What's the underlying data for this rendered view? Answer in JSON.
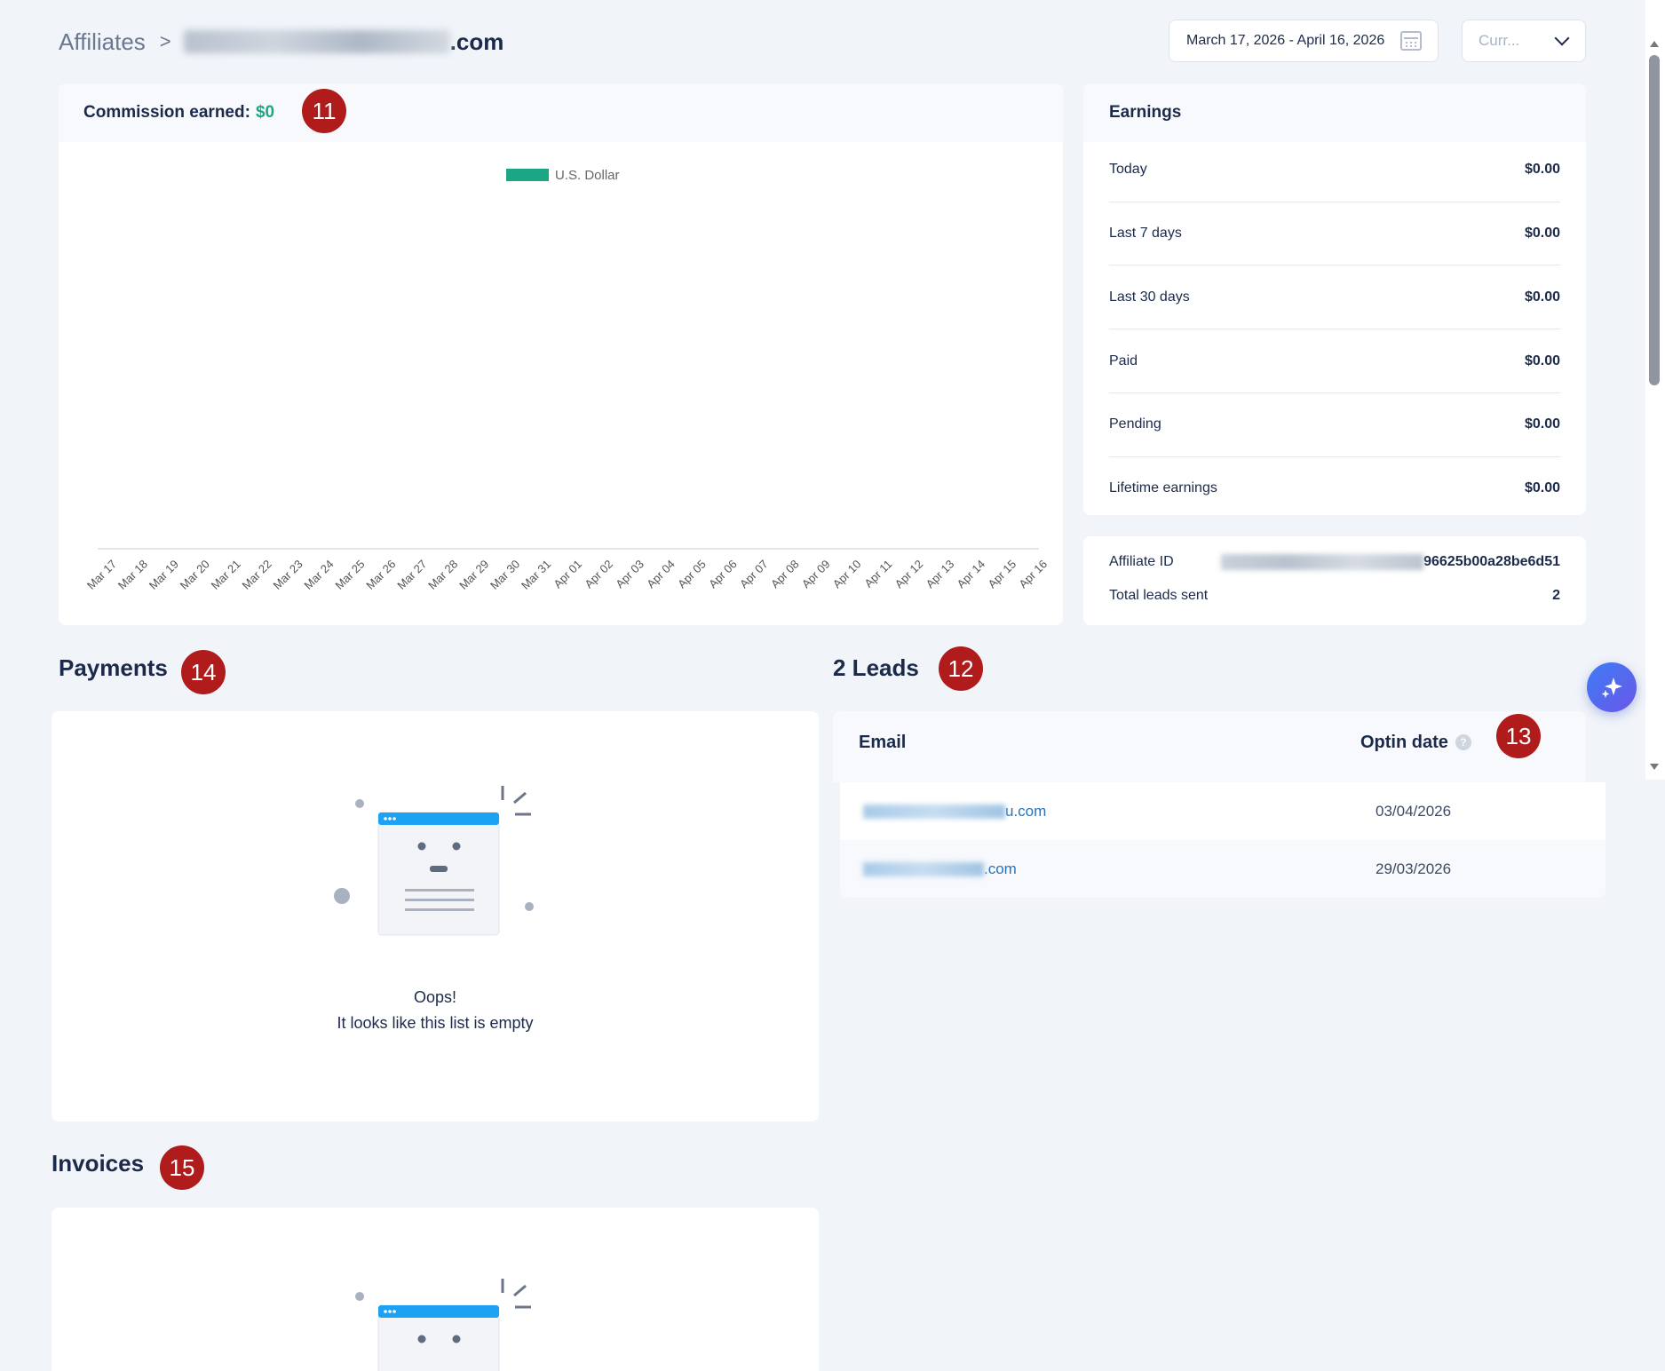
{
  "header": {
    "breadcrumb_root": "Affiliates",
    "breadcrumb_separator": ">",
    "breadcrumb_tail": ".com",
    "date_range": "March 17, 2026 - April 16, 2026",
    "currency_placeholder": "Curr..."
  },
  "commission": {
    "label": "Commission earned:",
    "amount": "$0"
  },
  "chart_data": {
    "type": "bar",
    "categories": [
      "Mar 17",
      "Mar 18",
      "Mar 19",
      "Mar 20",
      "Mar 21",
      "Mar 22",
      "Mar 23",
      "Mar 24",
      "Mar 25",
      "Mar 26",
      "Mar 27",
      "Mar 28",
      "Mar 29",
      "Mar 30",
      "Mar 31",
      "Apr 01",
      "Apr 02",
      "Apr 03",
      "Apr 04",
      "Apr 05",
      "Apr 06",
      "Apr 07",
      "Apr 08",
      "Apr 09",
      "Apr 10",
      "Apr 11",
      "Apr 12",
      "Apr 13",
      "Apr 14",
      "Apr 15",
      "Apr 16"
    ],
    "series": [
      {
        "name": "U.S. Dollar",
        "color": "#1ba784",
        "values": [
          0,
          0,
          0,
          0,
          0,
          0,
          0,
          0,
          0,
          0,
          0,
          0,
          0,
          0,
          0,
          0,
          0,
          0,
          0,
          0,
          0,
          0,
          0,
          0,
          0,
          0,
          0,
          0,
          0,
          0,
          0
        ]
      }
    ],
    "legend": "top-center",
    "grid": false
  },
  "earnings": {
    "title": "Earnings",
    "rows": [
      {
        "label": "Today",
        "value": "$0.00"
      },
      {
        "label": "Last 7 days",
        "value": "$0.00"
      },
      {
        "label": "Last 30 days",
        "value": "$0.00"
      },
      {
        "label": "Paid",
        "value": "$0.00"
      },
      {
        "label": "Pending",
        "value": "$0.00"
      },
      {
        "label": "Lifetime earnings",
        "value": "$0.00"
      }
    ]
  },
  "affiliate": {
    "id_label": "Affiliate ID",
    "id_value_visible": "96625b00a28be6d51",
    "leads_label": "Total leads sent",
    "leads_value": "2"
  },
  "payments": {
    "title": "Payments",
    "empty_title": "Oops!",
    "empty_message": "It looks like this list is empty"
  },
  "leads": {
    "title": "2 Leads",
    "col_email": "Email",
    "col_optin": "Optin date",
    "info_glyph": "?",
    "rows": [
      {
        "email_suffix": "u.com",
        "date": "03/04/2026"
      },
      {
        "email_suffix": ".com",
        "date": "29/03/2026"
      }
    ]
  },
  "invoices": {
    "title": "Invoices"
  },
  "badges": {
    "commission": "11",
    "leads": "12",
    "optin": "13",
    "payments": "14",
    "invoices": "15"
  },
  "colors": {
    "accent_green": "#1ba784",
    "badge_red": "#b01c1c",
    "link_blue": "#2a72b8",
    "header_blue": "#1da1f2"
  },
  "icons": {
    "calendar": "calendar-icon",
    "dropdown": "chevron-down-icon",
    "info": "info-icon",
    "ai": "sparkle-icon",
    "empty": "empty-list-illustration"
  }
}
